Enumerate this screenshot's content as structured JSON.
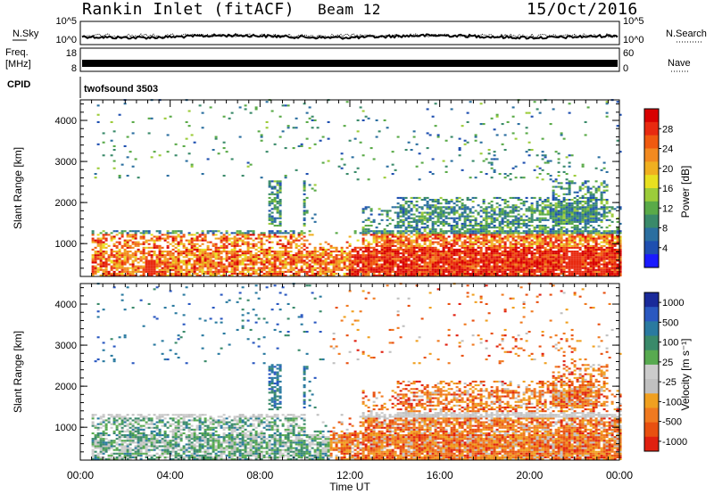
{
  "header": {
    "station": "Rankin Inlet (fitACF)",
    "beam": "Beam 12",
    "date": "15/Oct/2016"
  },
  "top_panels": {
    "nsky_label": "N.Sky",
    "nsky_ticks": [
      "10^5",
      "10^0"
    ],
    "nsearch_label": "N.Search",
    "nsearch_ticks": [
      "10^5",
      "10^0"
    ],
    "freq_label_line1": "Freq.",
    "freq_label_line2": "[MHz]",
    "freq_ticks": [
      "18",
      "8"
    ],
    "nave_label": "Nave",
    "nave_ticks": [
      "60",
      "0"
    ],
    "cpid_label": "CPID",
    "cpid_value": "twofsound 3503"
  },
  "colors": {
    "power_scale": [
      "#1a1aff",
      "#1f4fb0",
      "#2b6fa0",
      "#3a8a6a",
      "#5aaa48",
      "#9ccc3a",
      "#e8e020",
      "#f0b020",
      "#f28a20",
      "#f05a10",
      "#e82a10",
      "#d80000"
    ],
    "velocity_scale": [
      "#1a2a9a",
      "#2a58c0",
      "#2a7aa0",
      "#3a8a6a",
      "#58aa50",
      "#cccccc",
      "#c0c0c0",
      "#f0a020",
      "#f07a20",
      "#e85010",
      "#e02010"
    ]
  },
  "chart_data": [
    {
      "type": "heatmap",
      "title": "",
      "xlabel": "",
      "ylabel": "Slant Range [km]",
      "xlim": [
        "00:00",
        "24:00"
      ],
      "ylim": [
        200,
        4500
      ],
      "yticks": [
        "1000",
        "2000",
        "3000",
        "4000"
      ],
      "x_tick_labels": [
        "00:00",
        "04:00",
        "08:00",
        "12:00",
        "16:00",
        "20:00",
        "00:00"
      ],
      "colorbar_label": "Power [dB]",
      "colorbar_ticks": [
        "4",
        "8",
        "12",
        "16",
        "20",
        "24",
        "28"
      ],
      "colorbar_range": [
        0,
        32
      ]
    },
    {
      "type": "heatmap",
      "title": "",
      "xlabel": "Time UT",
      "ylabel": "Slant Range [km]",
      "xlim": [
        "00:00",
        "24:00"
      ],
      "ylim": [
        200,
        4500
      ],
      "yticks": [
        "1000",
        "2000",
        "3000",
        "4000"
      ],
      "x_tick_labels": [
        "00:00",
        "04:00",
        "08:00",
        "12:00",
        "16:00",
        "20:00",
        "00:00"
      ],
      "colorbar_label": "Velocity [m s⁻¹]",
      "colorbar_ticks": [
        "1000",
        "500",
        "100",
        "25",
        "-25",
        "-100",
        "-500",
        "-1000"
      ]
    }
  ]
}
